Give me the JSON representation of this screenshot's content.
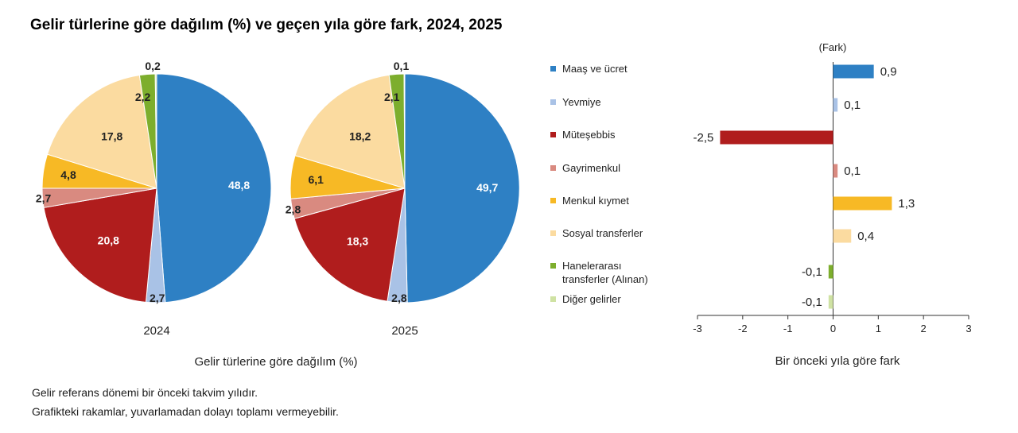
{
  "title": "Gelir türlerine göre dağılım (%) ve geçen yıla göre fark, 2024, 2025",
  "notes": [
    "Gelir referans dönemi bir önceki takvim yılıdır.",
    "Grafikteki rakamlar, yuvarlamadan dolayı toplamı vermeyebilir."
  ],
  "categories": [
    "Maaş ve ücret",
    "Yevmiye",
    "Müteşebbis",
    "Gayrimenkul",
    "Menkul kıymet",
    "Sosyal transferler",
    "Hanelerarası transferler (Alınan)",
    "Diğer gelirler"
  ],
  "colors": [
    "#2e80c4",
    "#a9c2e6",
    "#b01d1d",
    "#d98a80",
    "#f7b925",
    "#fbdba0",
    "#7dae2d",
    "#cfe2a3"
  ],
  "chart_data": [
    {
      "type": "pie",
      "title": "2024",
      "categories": [
        "Maaş ve ücret",
        "Yevmiye",
        "Müteşebbis",
        "Gayrimenkul",
        "Menkul kıymet",
        "Sosyal transferler",
        "Hanelerarası transferler (Alınan)",
        "Diğer gelirler"
      ],
      "values": [
        48.8,
        2.7,
        20.8,
        2.7,
        4.8,
        17.8,
        2.2,
        0.2
      ],
      "labels": [
        "48,8",
        "2,7",
        "20,8",
        "2,7",
        "4,8",
        "17,8",
        "2,2",
        "0,2"
      ]
    },
    {
      "type": "pie",
      "title": "2025",
      "categories": [
        "Maaş ve ücret",
        "Yevmiye",
        "Müteşebbis",
        "Gayrimenkul",
        "Menkul kıymet",
        "Sosyal transferler",
        "Hanelerarası transferler (Alınan)",
        "Diğer gelirler"
      ],
      "values": [
        49.7,
        2.8,
        18.3,
        2.8,
        6.1,
        18.2,
        2.1,
        0.1
      ],
      "labels": [
        "49,7",
        "2,8",
        "18,3",
        "2,8",
        "6,1",
        "18,2",
        "2,1",
        "0,1"
      ]
    },
    {
      "type": "bar",
      "orientation": "horizontal",
      "categories": [
        "Maaş ve ücret",
        "Yevmiye",
        "Müteşebbis",
        "Gayrimenkul",
        "Menkul kıymet",
        "Sosyal transferler",
        "Hanelerarası transferler (Alınan)",
        "Diğer gelirler"
      ],
      "values": [
        0.9,
        0.1,
        -2.5,
        0.1,
        1.3,
        0.4,
        -0.1,
        -0.1
      ],
      "labels": [
        "0,9",
        "0,1",
        "-2,5",
        "0,1",
        "1,3",
        "0,4",
        "-0,1",
        "-0,1"
      ],
      "xlabel": "Bir önceki yıla göre fark",
      "unit_label": "(Fark)",
      "xlim": [
        -3,
        3
      ],
      "xticks": [
        -3,
        -2,
        -1,
        0,
        1,
        2,
        3
      ],
      "grid": false
    }
  ],
  "pie_axis_label": "Gelir türlerine göre dağılım (%)"
}
